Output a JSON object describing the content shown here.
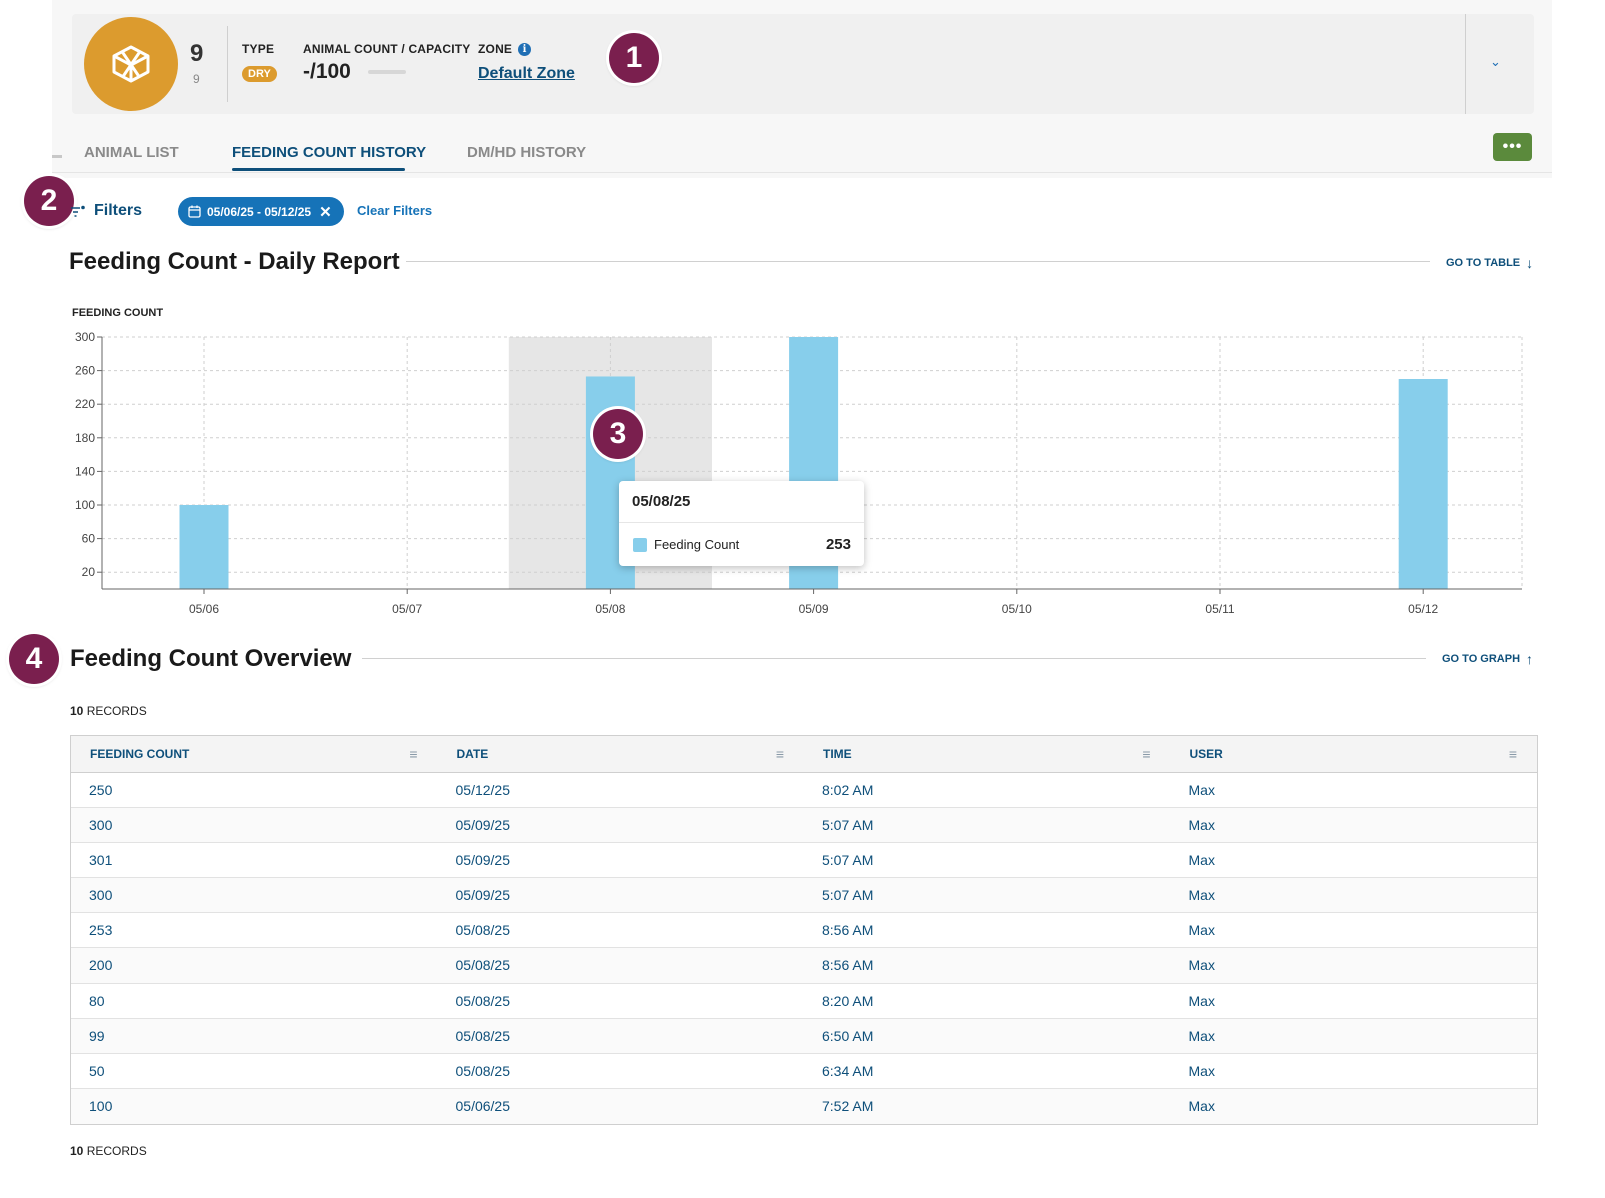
{
  "header": {
    "pen_number": "9",
    "pen_sub": "9",
    "type_label": "TYPE",
    "type_value": "DRY",
    "capacity_label": "ANIMAL COUNT / CAPACITY",
    "capacity_value": "-/100",
    "capacity_fill": 0,
    "zone_label": "ZONE",
    "zone_value": "Default Zone",
    "chevron": "⌄",
    "icon": "pen-icon"
  },
  "markers": [
    "1",
    "2",
    "3",
    "4"
  ],
  "tabs": [
    {
      "label": "ANIMAL LIST"
    },
    {
      "label": "FEEDING COUNT HISTORY"
    },
    {
      "label": "DM/HD HISTORY"
    }
  ],
  "more_button": "•••",
  "filters": {
    "label": "Filters",
    "chip": "05/06/25 - 05/12/25",
    "clear": "Clear Filters"
  },
  "daily_report": {
    "title": "Feeding Count - Daily Report",
    "goto": "GO TO TABLE"
  },
  "chart_data": {
    "type": "bar",
    "ylabel": "FEEDING COUNT",
    "categories": [
      "05/06",
      "05/07",
      "05/08",
      "05/09",
      "05/10",
      "05/11",
      "05/12"
    ],
    "values": [
      100,
      0,
      253,
      300,
      0,
      0,
      250
    ],
    "yticks": [
      20,
      60,
      100,
      140,
      180,
      220,
      260,
      300
    ],
    "ylim": [
      0,
      300
    ],
    "grid": true,
    "color": "#87ceeb",
    "highlighted_category": "05/08",
    "tooltip": {
      "date": "05/08/25",
      "series": "Feeding Count",
      "value": "253"
    }
  },
  "overview": {
    "title": "Feeding Count Overview",
    "goto": "GO TO GRAPH",
    "records_count": "10",
    "records_label": "RECORDS",
    "columns": [
      "FEEDING COUNT",
      "DATE",
      "TIME",
      "USER"
    ],
    "rows": [
      [
        "250",
        "05/12/25",
        "8:02 AM",
        "Max"
      ],
      [
        "300",
        "05/09/25",
        "5:07 AM",
        "Max"
      ],
      [
        "301",
        "05/09/25",
        "5:07 AM",
        "Max"
      ],
      [
        "300",
        "05/09/25",
        "5:07 AM",
        "Max"
      ],
      [
        "253",
        "05/08/25",
        "8:56 AM",
        "Max"
      ],
      [
        "200",
        "05/08/25",
        "8:56 AM",
        "Max"
      ],
      [
        "80",
        "05/08/25",
        "8:20 AM",
        "Max"
      ],
      [
        "99",
        "05/08/25",
        "6:50 AM",
        "Max"
      ],
      [
        "50",
        "05/08/25",
        "6:34 AM",
        "Max"
      ],
      [
        "100",
        "05/06/25",
        "7:52 AM",
        "Max"
      ]
    ]
  }
}
